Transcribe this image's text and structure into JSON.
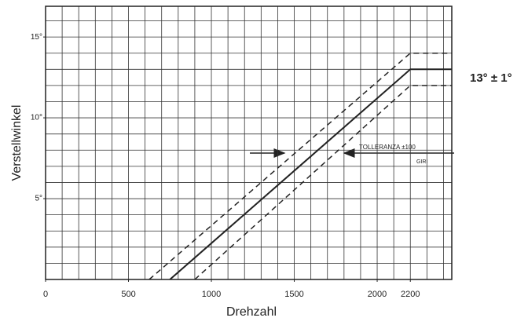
{
  "chart_data": {
    "type": "line",
    "xlabel": "Drehzahl",
    "ylabel": "Verstellwinkel",
    "xlim": [
      0,
      2450
    ],
    "ylim": [
      0,
      16.9
    ],
    "xticks": [
      0,
      500,
      1000,
      1500,
      2000,
      2200
    ],
    "yticks": [
      {
        "value": 5,
        "label": "5°"
      },
      {
        "value": 10,
        "label": "10°"
      },
      {
        "value": 15,
        "label": "15°"
      }
    ],
    "grid": true,
    "grid_step_x": 100,
    "grid_step_y": 1,
    "series": [
      {
        "x": [
          625,
          2200,
          2450
        ],
        "values": [
          0,
          14,
          14
        ],
        "color": "#222222",
        "dashed": true
      },
      {
        "x": [
          750,
          2200,
          2450
        ],
        "values": [
          0,
          13,
          13
        ],
        "color": "#222222",
        "dashed": false
      },
      {
        "x": [
          900,
          2200,
          2450
        ],
        "values": [
          0,
          12,
          12
        ],
        "color": "#222222",
        "dashed": true
      }
    ],
    "annotations": [
      "13° ± 1°",
      "TOLLERANZA ±100",
      "GIRI"
    ]
  }
}
